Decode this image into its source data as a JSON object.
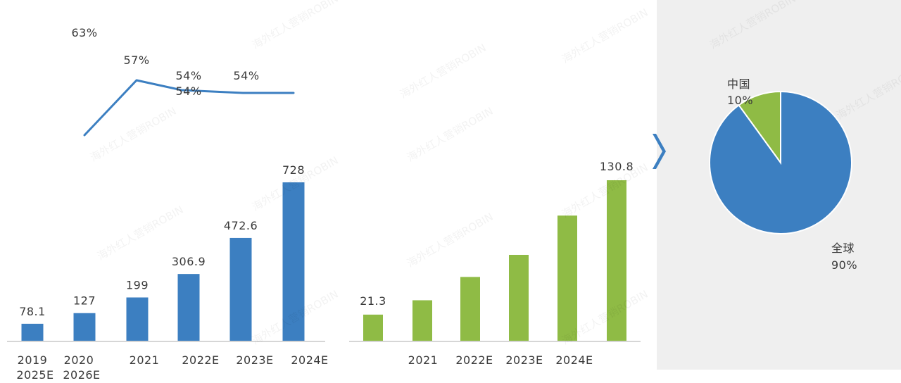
{
  "watermark": "海外红人营销ROBIN",
  "colors": {
    "blue": "#3c7fc1",
    "green": "#8fbb45",
    "axis": "#c9c9c9",
    "panel": "#efefef"
  },
  "chart_data": [
    {
      "type": "bar",
      "categories": [
        "2019",
        "2020",
        "2021",
        "2022E",
        "2023E",
        "2024E"
      ],
      "extra_tick_labels": [
        "2025E",
        "2026E"
      ],
      "values": [
        78.1,
        127,
        199,
        306.9,
        472.6,
        728
      ],
      "data_labels": [
        "78.1",
        "127",
        "199",
        "306.9",
        "472.6",
        "728"
      ],
      "ylim": [
        0,
        800
      ]
    },
    {
      "type": "line",
      "points": [
        {
          "label": "63%",
          "value": 63
        },
        {
          "label": "57%",
          "value": 57
        },
        {
          "label": "54%",
          "value": 54
        },
        {
          "label": "54%",
          "value": 54
        },
        {
          "label": "54%",
          "value": 54
        }
      ],
      "ylim": [
        50,
        66
      ]
    },
    {
      "type": "bar",
      "categories": [
        "",
        "2021",
        "2022E",
        "2023E",
        "2024E",
        ""
      ],
      "values": [
        21.3,
        33,
        52,
        70,
        102,
        130.8
      ],
      "data_labels": [
        "21.3",
        "",
        "",
        "",
        "",
        "130.8"
      ],
      "ylim": [
        0,
        140
      ]
    },
    {
      "type": "pie",
      "slices": [
        {
          "name": "全球",
          "value": 90,
          "label": "90%"
        },
        {
          "name": "中国",
          "value": 10,
          "label": "10%"
        }
      ]
    }
  ]
}
